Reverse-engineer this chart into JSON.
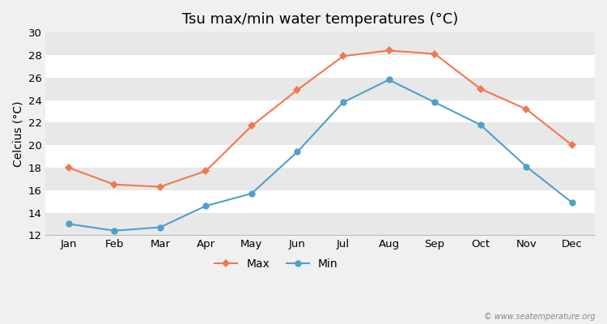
{
  "title": "Tsu max/min water temperatures (°C)",
  "ylabel": "Celcius (°C)",
  "months": [
    "Jan",
    "Feb",
    "Mar",
    "Apr",
    "May",
    "Jun",
    "Jul",
    "Aug",
    "Sep",
    "Oct",
    "Nov",
    "Dec"
  ],
  "max_temps": [
    18.0,
    16.5,
    16.3,
    17.7,
    21.7,
    24.9,
    27.9,
    28.4,
    28.1,
    25.0,
    23.2,
    20.0
  ],
  "min_temps": [
    13.0,
    12.4,
    12.7,
    14.6,
    15.7,
    19.4,
    23.8,
    25.8,
    23.8,
    21.8,
    18.1,
    14.9
  ],
  "max_color": "#f07850",
  "min_color": "#50a0c8",
  "ylim": [
    12,
    30
  ],
  "yticks": [
    12,
    14,
    16,
    18,
    20,
    22,
    24,
    26,
    28,
    30
  ],
  "bg_color": "#f0f0f0",
  "plot_bg_color": "#ffffff",
  "band_color": "#e8e8e8",
  "watermark": "© www.seatemperature.org",
  "legend_labels": [
    "Max",
    "Min"
  ],
  "title_fontsize": 13,
  "axis_label_fontsize": 10,
  "tick_fontsize": 9.5
}
